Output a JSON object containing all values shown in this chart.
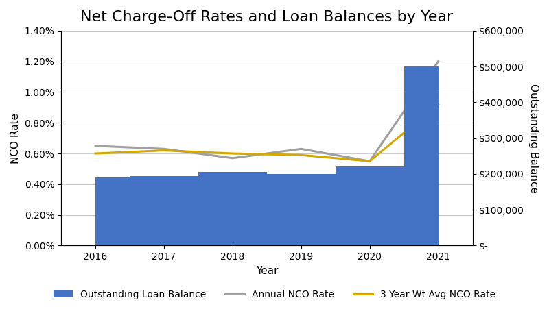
{
  "title": "Net Charge-Off Rates and Loan Balances by Year",
  "years": [
    2016,
    2017,
    2018,
    2019,
    2020,
    2021
  ],
  "outstanding_loan_balance": [
    190000,
    195000,
    205000,
    200000,
    220000,
    500000
  ],
  "annual_nco_rate": [
    0.0065,
    0.0063,
    0.0057,
    0.0063,
    0.0055,
    0.012
  ],
  "three_year_wt_avg_nco_rate": [
    0.006,
    0.0062,
    0.006,
    0.0059,
    0.0055,
    0.0092
  ],
  "bar_color": "#4472C4",
  "annual_nco_color": "#A0A0A0",
  "three_yr_color": "#D4A800",
  "xlabel": "Year",
  "ylabel_left": "NCO Rate",
  "ylabel_right": "Outstanding Balance",
  "ylim_left": [
    0,
    0.014
  ],
  "ylim_right": [
    0,
    600000
  ],
  "yticks_left": [
    0.0,
    0.002,
    0.004,
    0.006,
    0.008,
    0.01,
    0.012,
    0.014
  ],
  "yticks_right": [
    0,
    100000,
    200000,
    300000,
    400000,
    500000,
    600000
  ],
  "legend_labels": [
    "Outstanding Loan Balance",
    "Annual NCO Rate",
    "3 Year Wt Avg NCO Rate"
  ],
  "background_color": "#FFFFFF",
  "title_fontsize": 16,
  "axis_fontsize": 11,
  "tick_fontsize": 10,
  "legend_fontsize": 10,
  "line_width": 2.2
}
